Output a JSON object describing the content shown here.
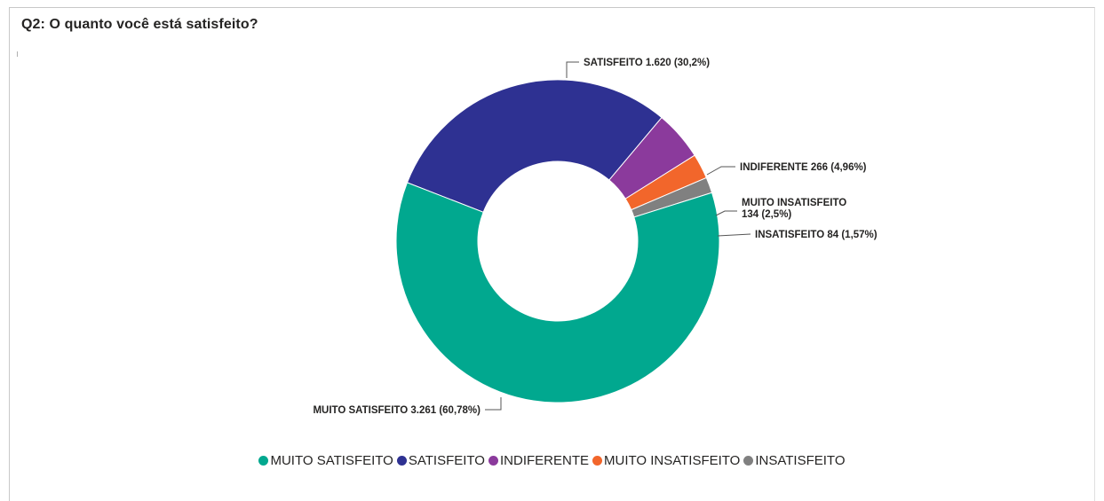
{
  "title": "Q2: O quanto você está satisfeito?",
  "chart_data": {
    "type": "pie",
    "donut": true,
    "title": "Q2: O quanto você está satisfeito?",
    "legend_placement": "bottom",
    "slices": [
      {
        "name": "SATISFEITO",
        "value": 1620,
        "percent": 30.2,
        "color": "#2E3192",
        "label": "SATISFEITO 1.620 (30,2%)"
      },
      {
        "name": "INDIFERENTE",
        "value": 266,
        "percent": 4.96,
        "color": "#8B3A9C",
        "label": "INDIFERENTE 266 (4,96%)"
      },
      {
        "name": "MUITO INSATISFEITO",
        "value": 134,
        "percent": 2.5,
        "color": "#F2662B",
        "label": "MUITO INSATISFEITO 134 (2,5%)",
        "label_lines": [
          "MUITO INSATISFEITO",
          "134 (2,5%)"
        ]
      },
      {
        "name": "INSATISFEITO",
        "value": 84,
        "percent": 1.57,
        "color": "#808080",
        "label": "INSATISFEITO 84 (1,57%)"
      },
      {
        "name": "MUITO SATISFEITO",
        "value": 3261,
        "percent": 60.78,
        "color": "#01A88F",
        "label": "MUITO SATISFEITO 3.261 (60,78%)"
      }
    ],
    "legend": [
      {
        "name": "MUITO SATISFEITO",
        "color": "#01A88F"
      },
      {
        "name": "SATISFEITO",
        "color": "#2E3192"
      },
      {
        "name": "INDIFERENTE",
        "color": "#8B3A9C"
      },
      {
        "name": "MUITO INSATISFEITO",
        "color": "#F2662B"
      },
      {
        "name": "INSATISFEITO",
        "color": "#808080"
      }
    ]
  }
}
